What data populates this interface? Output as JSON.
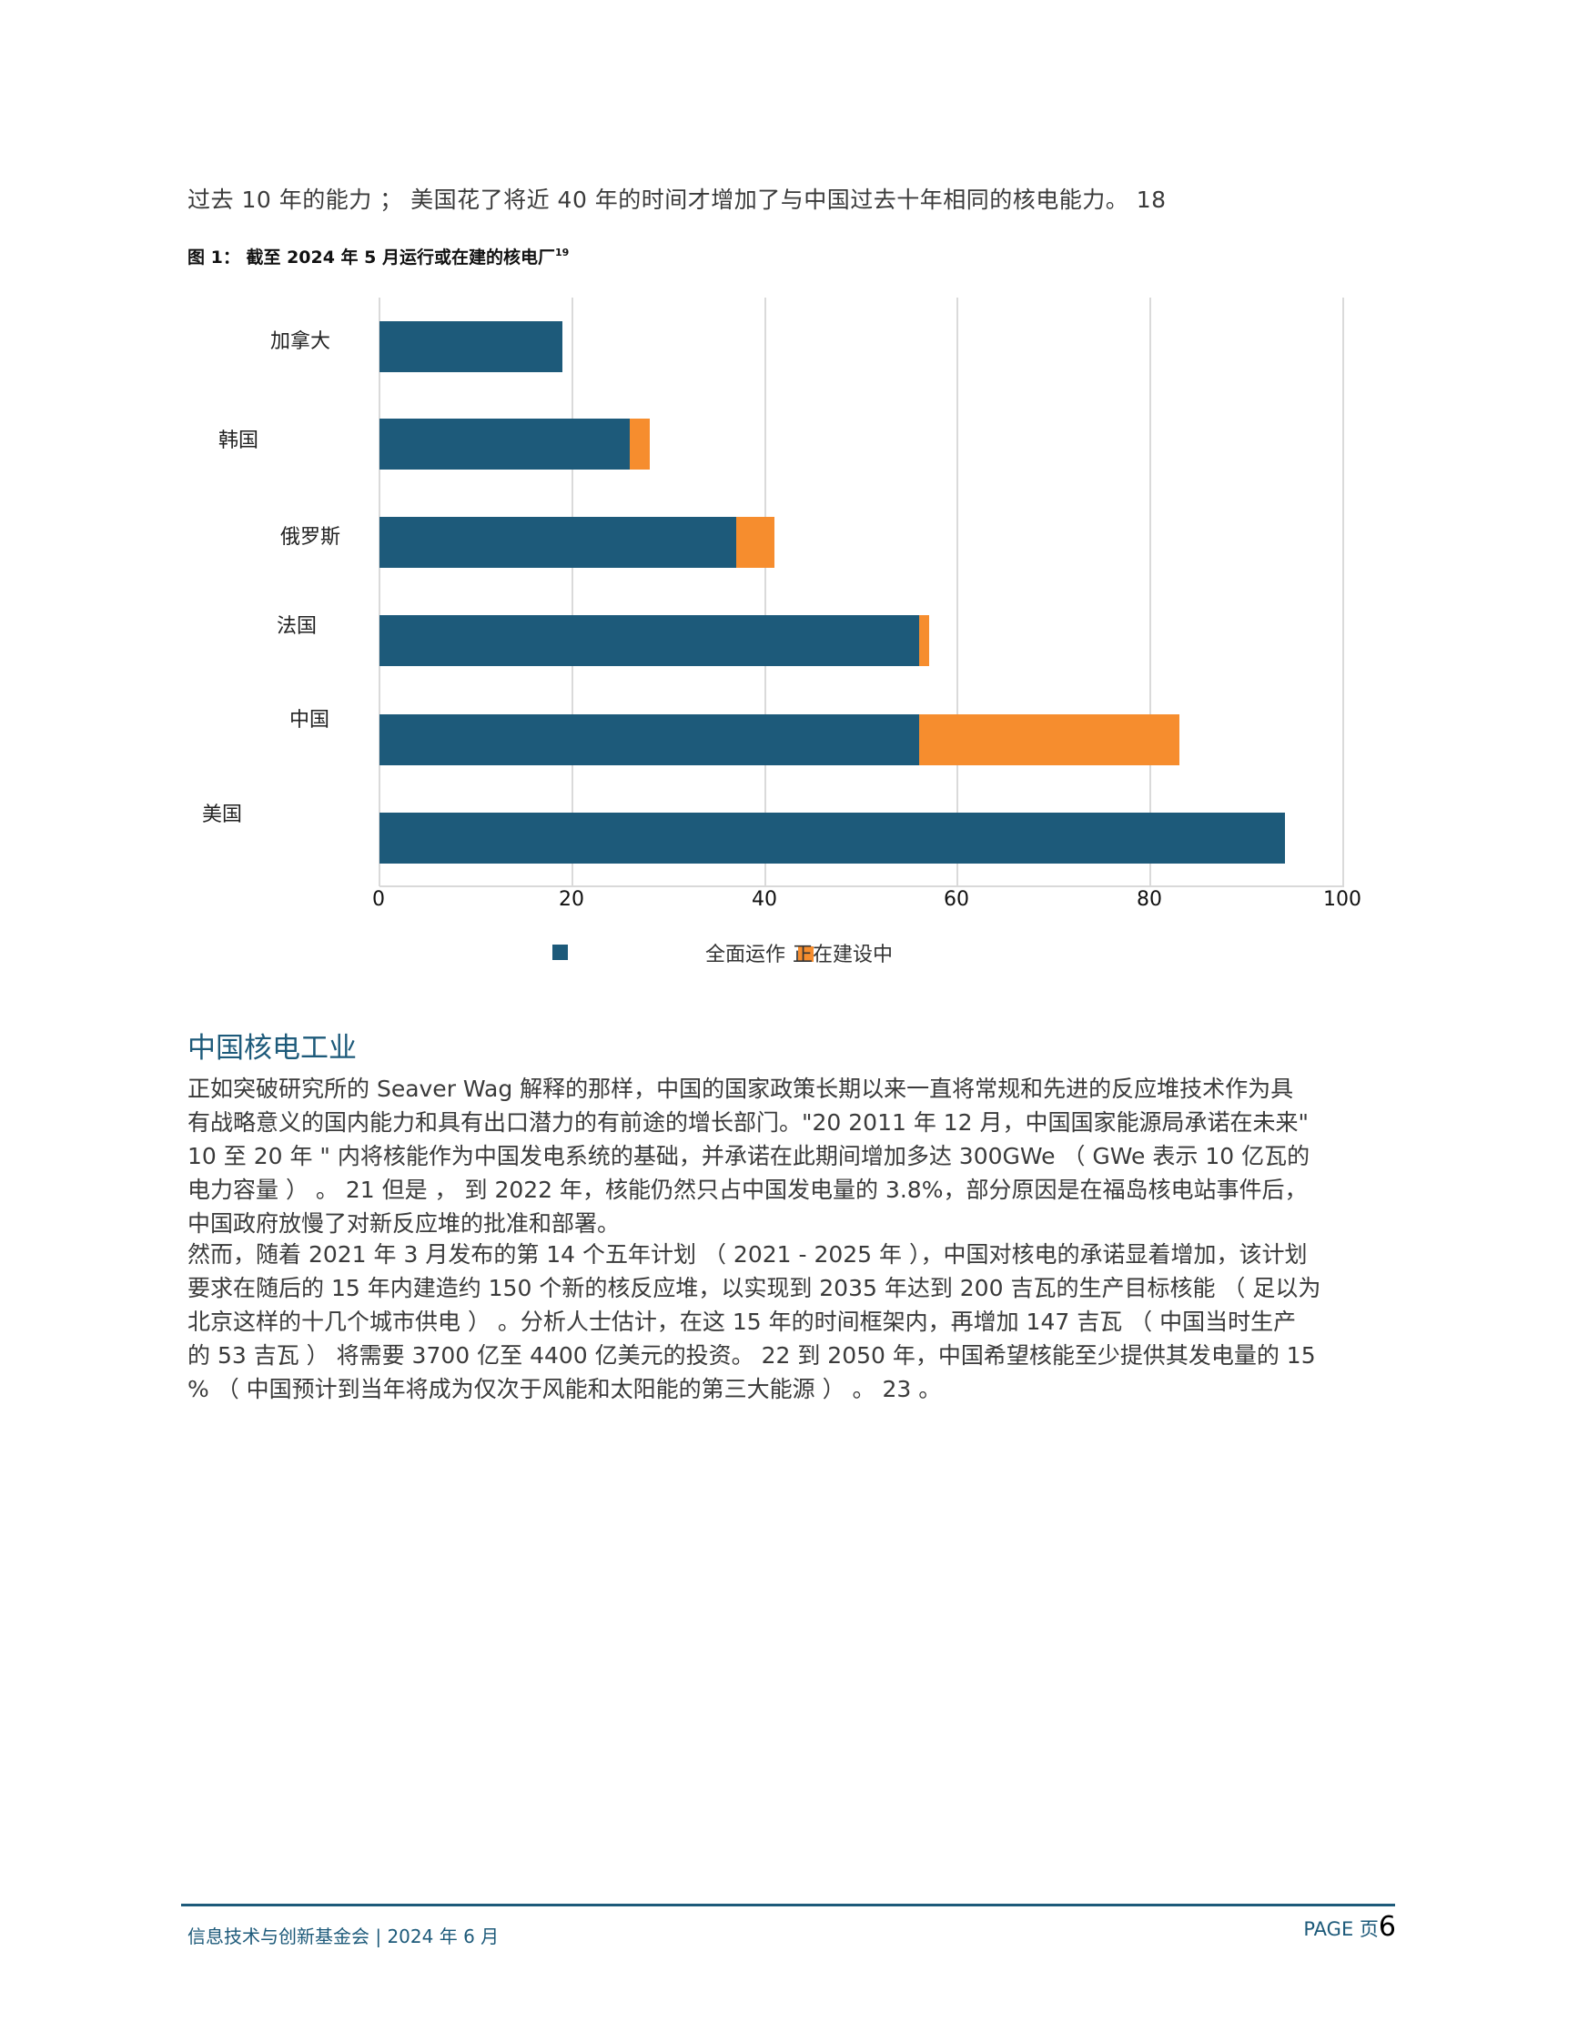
{
  "intro_text": "过去 10 年的能力 ； 美国花了将近 40 年的时间才增加了与中国过去十年相同的核电能力。 18",
  "figure": {
    "caption": "图 1： 截至 2024 年 5 月运行或在建的核电厂",
    "footnote": "19"
  },
  "chart_data": {
    "type": "bar",
    "orientation": "horizontal",
    "stacked": true,
    "title": "图 1： 截至 2024 年 5 月运行或在建的核电厂",
    "categories": [
      "加拿大",
      "韩国",
      "俄罗斯",
      "法国",
      "中国",
      "美国"
    ],
    "series": [
      {
        "name": "全面运作",
        "color": "#1d5a7a",
        "values": [
          19,
          26,
          37,
          56,
          56,
          94
        ]
      },
      {
        "name": "正在建设中",
        "color": "#f68d2e",
        "values": [
          0,
          2,
          4,
          1,
          27,
          0
        ]
      }
    ],
    "xlabel": "",
    "ylabel": "",
    "xlim": [
      0,
      100
    ],
    "xticks": [
      "0",
      "20",
      "40",
      "60",
      "80",
      "100"
    ],
    "grid": true,
    "legend_position": "bottom"
  },
  "legend": {
    "operating": "全面运作",
    "construction": "正在建设中"
  },
  "section": {
    "title": "中国核电工业",
    "para1": [
      "正如突破研究所的 Seaver Wag 解释的那样，中国的国家政策长期以来一直将常规和先进的反应堆技术作为具",
      "有战略意义的国内能力和具有出口潜力的有前途的增长部门。\"20 2011 年 12 月，中国国家能源局承诺在未来\"",
      "10 至 20 年 \" 内将核能作为中国发电系统的基础，并承诺在此期间增加多达 300GWe （ GWe 表示 10 亿瓦的",
      "电力容量 ） 。 21 但是 ， 到 2022 年，核能仍然只占中国发电量的 3.8%，部分原因是在福岛核电站事件后，",
      "中国政府放慢了对新反应堆的批准和部署。"
    ],
    "para2": [
      "然而，随着 2021 年 3 月发布的第 14 个五年计划 （ 2021 - 2025 年 ），中国对核电的承诺显着增加，该计划",
      "要求在随后的 15 年内建造约 150 个新的核反应堆，以实现到 2035 年达到 200 吉瓦的生产目标核能 （ 足以为",
      "北京这样的十几个城市供电 ） 。分析人士估计，在这 15 年的时间框架内，再增加 147 吉瓦 （ 中国当时生产",
      "的 53 吉瓦 ） 将需要 3700 亿至 4400 亿美元的投资。 22 到 2050 年，中国希望核能至少提供其发电量的 15",
      "% （ 中国预计到当年将成为仅次于风能和太阳能的第三大能源 ） 。 23 。"
    ]
  },
  "footer": {
    "org_date": "信息技术与创新基金会 | 2024 年 6 月",
    "page_label": "PAGE 页",
    "page_number": "6"
  }
}
